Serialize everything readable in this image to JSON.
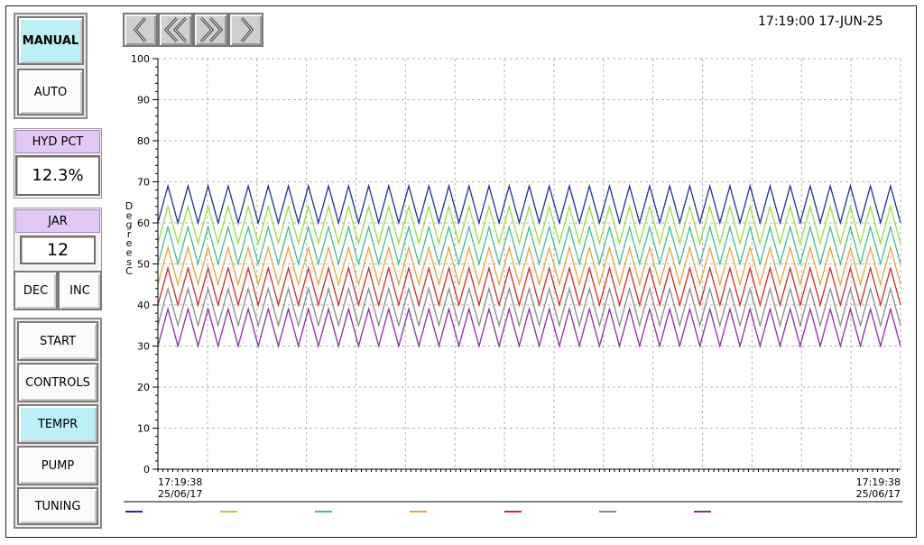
{
  "mode": {
    "manual_label": "MANUAL",
    "auto_label": "AUTO",
    "active": "manual"
  },
  "hyd": {
    "label": "HYD PCT",
    "value": "12.3%"
  },
  "jar": {
    "label": "JAR",
    "value": "12",
    "dec_label": "DEC",
    "inc_label": "INC"
  },
  "menu": {
    "items": [
      {
        "label": "START",
        "active": false
      },
      {
        "label": "CONTROLS",
        "active": false
      },
      {
        "label": "TEMPR",
        "active": true
      },
      {
        "label": "PUMP",
        "active": false
      },
      {
        "label": "TUNING",
        "active": false
      }
    ]
  },
  "toolbar": {
    "buttons": [
      "prev-icon",
      "rewind-icon",
      "fast-forward-icon",
      "next-icon"
    ]
  },
  "clock": {
    "text": "17:19:00 17-JUN-25"
  },
  "chart_data": {
    "type": "line",
    "ylabel": "Degrees C",
    "ylim": [
      0,
      100
    ],
    "yticks": [
      "0",
      "10",
      "20",
      "30",
      "40",
      "50",
      "60",
      "70",
      "80",
      "90",
      "100"
    ],
    "x_start_time": "17:19:38",
    "x_start_date": "25/06/17",
    "x_end_time": "17:19:38",
    "x_end_date": "25/06/17",
    "grid": true,
    "cycles": 37,
    "series": [
      {
        "color": "#1a2f9e",
        "min": 60,
        "max": 69
      },
      {
        "color": "#9bdc3c",
        "min": 55,
        "max": 64
      },
      {
        "color": "#3dbf8e",
        "min": 50,
        "max": 59
      },
      {
        "color": "#e8a23a",
        "min": 45,
        "max": 54
      },
      {
        "color": "#cc2b2b",
        "min": 40,
        "max": 49
      },
      {
        "color": "#8a8a8a",
        "min": 35,
        "max": 44
      },
      {
        "color": "#8b2ea0",
        "min": 30,
        "max": 39
      }
    ]
  }
}
